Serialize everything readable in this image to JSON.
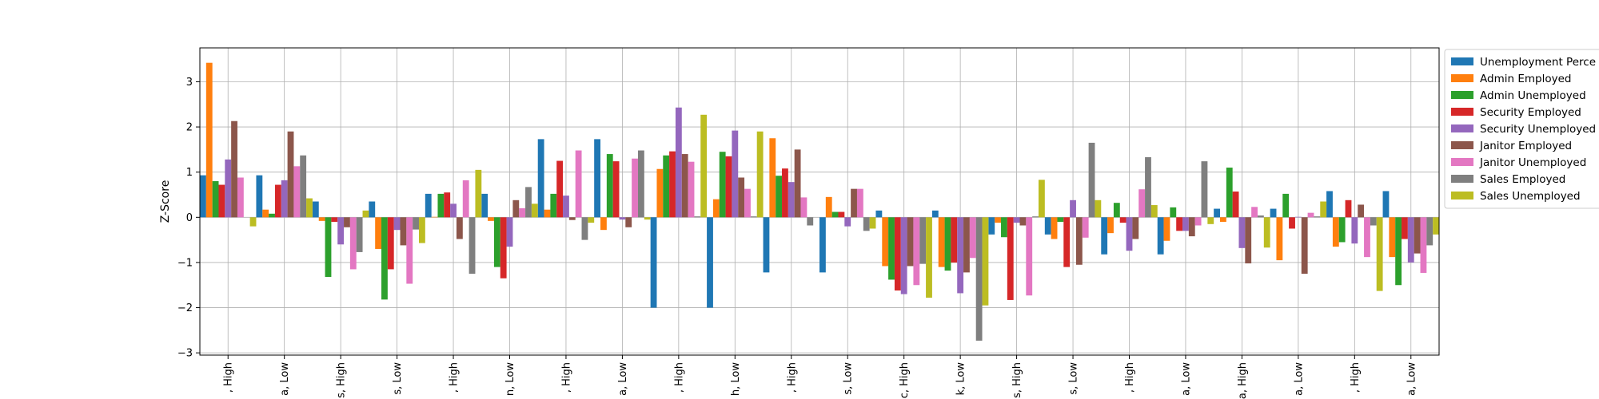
{
  "chart_data": {
    "type": "bar",
    "title": "",
    "xlabel": "",
    "ylabel": "Z-Score",
    "ylim": [
      -3.05,
      3.75
    ],
    "yticks": [
      -3,
      -2,
      -1,
      0,
      1,
      2,
      3
    ],
    "grid": true,
    "legend_position": "upper-right-outside",
    "categories": [
      ", High",
      "a, Low",
      "s, High",
      "s, Low",
      ", High",
      "n, Low",
      ", High",
      "a, Low",
      ", High",
      "h, Low",
      ", High",
      "s, Low",
      "c, High",
      "k, Low",
      "s, High",
      "s, Low",
      ", High",
      "a, Low",
      "a, High",
      "a, Low",
      ", High",
      "a, Low"
    ],
    "series": [
      {
        "name": "Unemployment Perce",
        "color": "#1f77b4",
        "values": [
          0.93,
          0.93,
          0.35,
          0.35,
          0.52,
          0.52,
          1.73,
          1.73,
          -2.0,
          -2.0,
          -1.22,
          -1.22,
          0.15,
          0.15,
          -0.38,
          -0.38,
          -0.82,
          -0.82,
          0.19,
          0.19,
          0.58,
          0.58
        ]
      },
      {
        "name": "Admin Employed",
        "color": "#ff7f0e",
        "values": [
          3.42,
          0.17,
          -0.08,
          -0.7,
          0.01,
          -0.08,
          0.17,
          -0.28,
          1.07,
          0.4,
          1.75,
          0.45,
          -1.08,
          -1.1,
          -0.12,
          -0.48,
          -0.35,
          -0.52,
          -0.1,
          -0.95,
          -0.65,
          -0.88
        ]
      },
      {
        "name": "Admin Unemployed",
        "color": "#2ca02c",
        "values": [
          0.8,
          0.08,
          -1.32,
          -1.82,
          0.52,
          -1.1,
          0.52,
          1.4,
          1.37,
          1.45,
          0.92,
          0.12,
          -1.38,
          -1.18,
          -0.44,
          -0.1,
          0.32,
          0.22,
          1.1,
          0.52,
          -0.55,
          -1.5
        ]
      },
      {
        "name": "Security Employed",
        "color": "#d62728",
        "values": [
          0.72,
          0.72,
          -0.1,
          -1.15,
          0.55,
          -1.35,
          1.25,
          1.24,
          1.46,
          1.35,
          1.08,
          0.12,
          -1.62,
          -1.0,
          -1.83,
          -1.1,
          -0.12,
          -0.3,
          0.57,
          -0.25,
          0.38,
          -0.48
        ]
      },
      {
        "name": "Security Unemployed",
        "color": "#9467bd",
        "values": [
          1.28,
          0.82,
          -0.6,
          -0.28,
          0.3,
          -0.65,
          0.48,
          -0.05,
          2.43,
          1.92,
          0.78,
          -0.2,
          -1.7,
          -1.68,
          -0.12,
          0.38,
          -0.74,
          -0.3,
          -0.68,
          0.01,
          -0.58,
          -1.0
        ]
      },
      {
        "name": "Janitor Employed",
        "color": "#8c564b",
        "values": [
          2.13,
          1.9,
          -0.22,
          -0.62,
          -0.48,
          0.38,
          -0.06,
          -0.22,
          1.4,
          0.88,
          1.5,
          0.63,
          -1.08,
          -1.22,
          -0.18,
          -1.05,
          -0.48,
          -0.42,
          -1.02,
          -1.25,
          0.28,
          -0.8
        ]
      },
      {
        "name": "Janitor Unemployed",
        "color": "#e377c2",
        "values": [
          0.88,
          1.13,
          -1.15,
          -1.47,
          0.82,
          0.2,
          1.48,
          1.3,
          1.23,
          0.63,
          0.44,
          0.63,
          -1.5,
          -0.9,
          -1.73,
          -0.45,
          0.62,
          -0.18,
          0.23,
          0.1,
          -0.88,
          -1.23
        ]
      },
      {
        "name": "Sales Employed",
        "color": "#7f7f7f",
        "values": [
          0.0,
          1.37,
          -0.77,
          -0.27,
          -1.25,
          0.67,
          -0.5,
          1.48,
          0.02,
          0.02,
          -0.18,
          -0.3,
          -1.03,
          -2.73,
          0.02,
          1.65,
          1.33,
          1.24,
          0.04,
          0.02,
          -0.18,
          -0.62
        ]
      },
      {
        "name": "Sales Unemployed",
        "color": "#bcbd22",
        "values": [
          -0.2,
          0.42,
          0.15,
          -0.57,
          1.05,
          0.3,
          -0.12,
          -0.05,
          2.27,
          1.9,
          0.0,
          -0.25,
          -1.78,
          -1.95,
          0.83,
          0.38,
          0.27,
          -0.15,
          -0.67,
          0.35,
          -1.63,
          -0.38
        ]
      }
    ]
  }
}
